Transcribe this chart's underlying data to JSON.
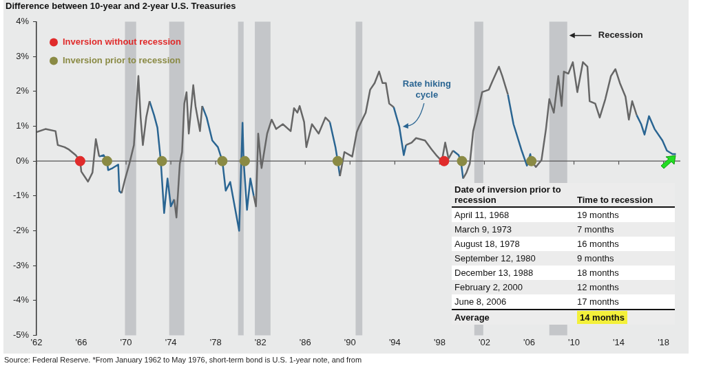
{
  "chart_data": [
    {
      "type": "line",
      "title": "Difference between 10-year and 2-year U.S. Treasuries",
      "x": [
        1962.0,
        1962.8,
        1963.7,
        1963.9,
        1964.5,
        1964.9,
        1965.5,
        1965.9,
        1966.0,
        1966.6,
        1967.0,
        1967.3,
        1967.6,
        1968.0,
        1968.3,
        1968.4,
        1968.8,
        1969.3,
        1969.4,
        1969.6,
        1969.9,
        1970.3,
        1970.7,
        1970.9,
        1971.1,
        1971.3,
        1971.5,
        1971.8,
        1972.1,
        1972.5,
        1972.8,
        1973.1,
        1973.4,
        1973.7,
        1974.0,
        1974.3,
        1974.5,
        1974.8,
        1975.0,
        1975.2,
        1975.4,
        1975.6,
        1976.0,
        1976.2,
        1976.6,
        1976.8,
        1977.2,
        1977.7,
        1978.2,
        1978.6,
        1978.9,
        1979.3,
        1979.7,
        1980.1,
        1980.4,
        1980.5,
        1980.8,
        1981.1,
        1981.4,
        1981.6,
        1981.8,
        1982.1,
        1982.6,
        1983.0,
        1983.4,
        1984.0,
        1984.7,
        1985.0,
        1985.3,
        1985.5,
        1985.9,
        1986.1,
        1986.6,
        1987.2,
        1987.8,
        1988.2,
        1988.7,
        1988.9,
        1989.1,
        1989.5,
        1990.2,
        1990.6,
        1990.8,
        1991.4,
        1991.8,
        1992.2,
        1992.6,
        1992.9,
        1993.2,
        1993.5,
        1993.9,
        1994.4,
        1994.8,
        1995.0,
        1995.5,
        1995.9,
        1996.7,
        1997.3,
        1997.7,
        1998.2,
        1998.5,
        1998.8,
        1999.2,
        1999.7,
        1999.9,
        2000.1,
        2000.4,
        2000.7,
        2001.0,
        2001.4,
        2001.8,
        2002.4,
        2002.7,
        2003.3,
        2003.6,
        2004.1,
        2004.6,
        2005.3,
        2005.8,
        2006.1,
        2006.2,
        2006.6,
        2007.1,
        2007.5,
        2007.8,
        2008.2,
        2008.6,
        2008.9,
        2009.1,
        2009.5,
        2009.9,
        2010.3,
        2010.8,
        2011.2,
        2011.4,
        2011.9,
        2012.3,
        2012.8,
        2013.3,
        2013.7,
        2014.1,
        2014.6,
        2014.9,
        2015.2,
        2015.6,
        2016.0,
        2016.3,
        2016.7,
        2017.2,
        2017.9,
        2018.3,
        2018.8,
        2019.1
      ],
      "series": [
        {
          "color": "#666666",
          "values": [
            0.83,
            0.92,
            0.86,
            0.46,
            0.4,
            0.33,
            0.17,
            0,
            -0.3,
            -0.59,
            -0.33,
            0.63,
            0.13,
            null,
            null,
            null,
            null,
            null,
            null,
            -0.92,
            -0.53,
            -0.07,
            0.46,
            1.45,
            2.44,
            1.25,
            0.46,
            1.25,
            1.72,
            null,
            null,
            null,
            null,
            null,
            null,
            -1.1,
            -1.62,
            -0.07,
            0.26,
            1.65,
            1.98,
            0.79,
            2.18,
            1.58,
            0.86,
            1.58,
            null,
            null,
            null,
            null,
            null,
            null,
            null,
            null,
            null,
            null,
            null,
            null,
            -1.0,
            -1.3,
            0.79,
            -0.2,
            0.79,
            1.19,
            0.92,
            1.06,
            0.86,
            1.52,
            1.39,
            1.58,
            1.12,
            0.4,
            1.06,
            0.79,
            1.25,
            1.12,
            null,
            null,
            -0.43,
            0.26,
            0.13,
            0.83,
            0.99,
            1.39,
            2.05,
            2.24,
            2.57,
            2.24,
            2.24,
            1.65,
            1.55,
            null,
            null,
            0.46,
            0.53,
            0.66,
            0.59,
            0.33,
            0.17,
            0,
            0.53,
            0.07,
            0.3,
            null,
            null,
            -0.5,
            -0.33,
            -0.07,
            0.86,
            1.39,
            1.98,
            2.05,
            2.28,
            2.71,
            2.44,
            1.91,
            null,
            null,
            null,
            null,
            0,
            -0.17,
            0.03,
            0.92,
            1.78,
            1.39,
            2.44,
            1.58,
            2.57,
            2.51,
            2.84,
            1.98,
            2.84,
            2.71,
            1.72,
            1.65,
            1.25,
            1.78,
            2.44,
            2.64,
            2.24,
            1.85,
            1.19,
            1.72,
            1.32,
            null,
            null,
            null,
            null,
            null,
            null,
            null,
            null
          ]
        },
        {
          "name": "Rate hiking cycle",
          "color": "#2a6592",
          "values": [
            null,
            null,
            null,
            null,
            null,
            null,
            null,
            null,
            null,
            null,
            null,
            null,
            0.13,
            0.17,
            0,
            -0.26,
            -0.2,
            -0.1,
            -0.86,
            -0.92,
            null,
            null,
            null,
            null,
            null,
            null,
            null,
            null,
            1.72,
            1.32,
            0.96,
            0,
            -1.49,
            -0.5,
            -1.3,
            -1.1,
            null,
            null,
            null,
            null,
            null,
            null,
            null,
            null,
            null,
            1.58,
            1.25,
            0.59,
            0.4,
            0,
            -0.85,
            -0.6,
            -1.3,
            -2.0,
            1.1,
            0,
            -1.4,
            -0.5,
            -1.0,
            null,
            null,
            null,
            null,
            null,
            null,
            null,
            null,
            null,
            null,
            null,
            null,
            null,
            null,
            null,
            null,
            1.12,
            0.4,
            0,
            -0.43,
            null,
            null,
            null,
            null,
            null,
            null,
            null,
            null,
            null,
            null,
            null,
            1.55,
            0.99,
            0.17,
            0.46,
            null,
            null,
            null,
            null,
            null,
            null,
            null,
            null,
            0.3,
            0.17,
            0,
            -0.5,
            null,
            null,
            null,
            null,
            null,
            null,
            null,
            null,
            null,
            1.91,
            1.06,
            0.33,
            -0.13,
            0.2,
            0,
            null,
            null,
            null,
            null,
            null,
            null,
            null,
            null,
            null,
            null,
            null,
            null,
            null,
            null,
            null,
            null,
            null,
            null,
            null,
            null,
            null,
            null,
            null,
            1.32,
            1.06,
            0.76,
            1.29,
            0.92,
            0.59,
            0.3,
            0.2,
            0.2
          ]
        },
        {
          "type": "scatter",
          "name": "Inversion without recession",
          "color": "#e02b2b",
          "marker": "circle",
          "x": [
            1965.9,
            1998.4
          ],
          "values": [
            0,
            0
          ]
        },
        {
          "type": "scatter",
          "name": "Inversion prior to recession",
          "color": "#8a8a44",
          "marker": "circle",
          "x": [
            1968.3,
            1973.2,
            1978.6,
            1980.6,
            1988.9,
            2000.0,
            2006.2
          ],
          "values": [
            0,
            0,
            0,
            0,
            0,
            0,
            0
          ]
        }
      ],
      "xlim": [
        1962,
        2019.5
      ],
      "xticks": [
        {
          "value": 1962,
          "label": "'62"
        },
        {
          "value": 1966,
          "label": "'66"
        },
        {
          "value": 1970,
          "label": "'70"
        },
        {
          "value": 1974,
          "label": "'74"
        },
        {
          "value": 1978,
          "label": "'78"
        },
        {
          "value": 1982,
          "label": "'82"
        },
        {
          "value": 1986,
          "label": "'86"
        },
        {
          "value": 1990,
          "label": "'90"
        },
        {
          "value": 1994,
          "label": "'94"
        },
        {
          "value": 1998,
          "label": "'98"
        },
        {
          "value": 2002,
          "label": "'02"
        },
        {
          "value": 2006,
          "label": "'06"
        },
        {
          "value": 2010,
          "label": "'10"
        },
        {
          "value": 2014,
          "label": "'14"
        },
        {
          "value": 2018,
          "label": "'18"
        }
      ],
      "ylim": [
        -5,
        4
      ],
      "yticks": [
        {
          "value": -5,
          "label": "-5%"
        },
        {
          "value": -4,
          "label": "-4%"
        },
        {
          "value": -3,
          "label": "-3%"
        },
        {
          "value": -2,
          "label": "-2%"
        },
        {
          "value": -1,
          "label": "-1%"
        },
        {
          "value": 0,
          "label": "0%"
        },
        {
          "value": 1,
          "label": "1%"
        },
        {
          "value": 2,
          "label": "2%"
        },
        {
          "value": 3,
          "label": "3%"
        },
        {
          "value": 4,
          "label": "4%"
        }
      ],
      "grid": false,
      "legend": "top left",
      "line_style": "solid",
      "bands": [
        {
          "axis": "x",
          "from": 1969.9,
          "to": 1970.9,
          "color": "#c4c6c9"
        },
        {
          "axis": "x",
          "from": 1973.85,
          "to": 1975.2,
          "color": "#c4c6c9"
        },
        {
          "axis": "x",
          "from": 1980.0,
          "to": 1980.5,
          "color": "#c4c6c9"
        },
        {
          "axis": "x",
          "from": 1981.5,
          "to": 1982.9,
          "color": "#c4c6c9"
        },
        {
          "axis": "x",
          "from": 1990.5,
          "to": 1991.1,
          "color": "#c4c6c9"
        },
        {
          "axis": "x",
          "from": 2001.1,
          "to": 2001.9,
          "color": "#c4c6c9"
        },
        {
          "axis": "x",
          "from": 2007.8,
          "to": 2009.4,
          "color": "#c4c6c9",
          "label": "Recession"
        }
      ],
      "ref_lines": [
        {
          "axis": "y",
          "value": 0,
          "color": "#555555"
        }
      ],
      "annotations": [
        "Source: Federal Reserve. *From January 1962 to May 1976, short-term bond is U.S. 1-year note, and from"
      ]
    },
    {
      "type": "other",
      "annotations": [
        "Date of inversion prior to recession",
        "Time to recession",
        "April 11, 1968",
        "19 months",
        "March 9, 1973",
        "7 months",
        "August 18, 1978",
        "16 months",
        "September 12, 1980",
        "9 months",
        "December 13, 1988",
        "18 months",
        "February 2, 2000",
        "12 months",
        "June 8, 2006",
        "17 months",
        "Average",
        "14 months"
      ]
    }
  ]
}
